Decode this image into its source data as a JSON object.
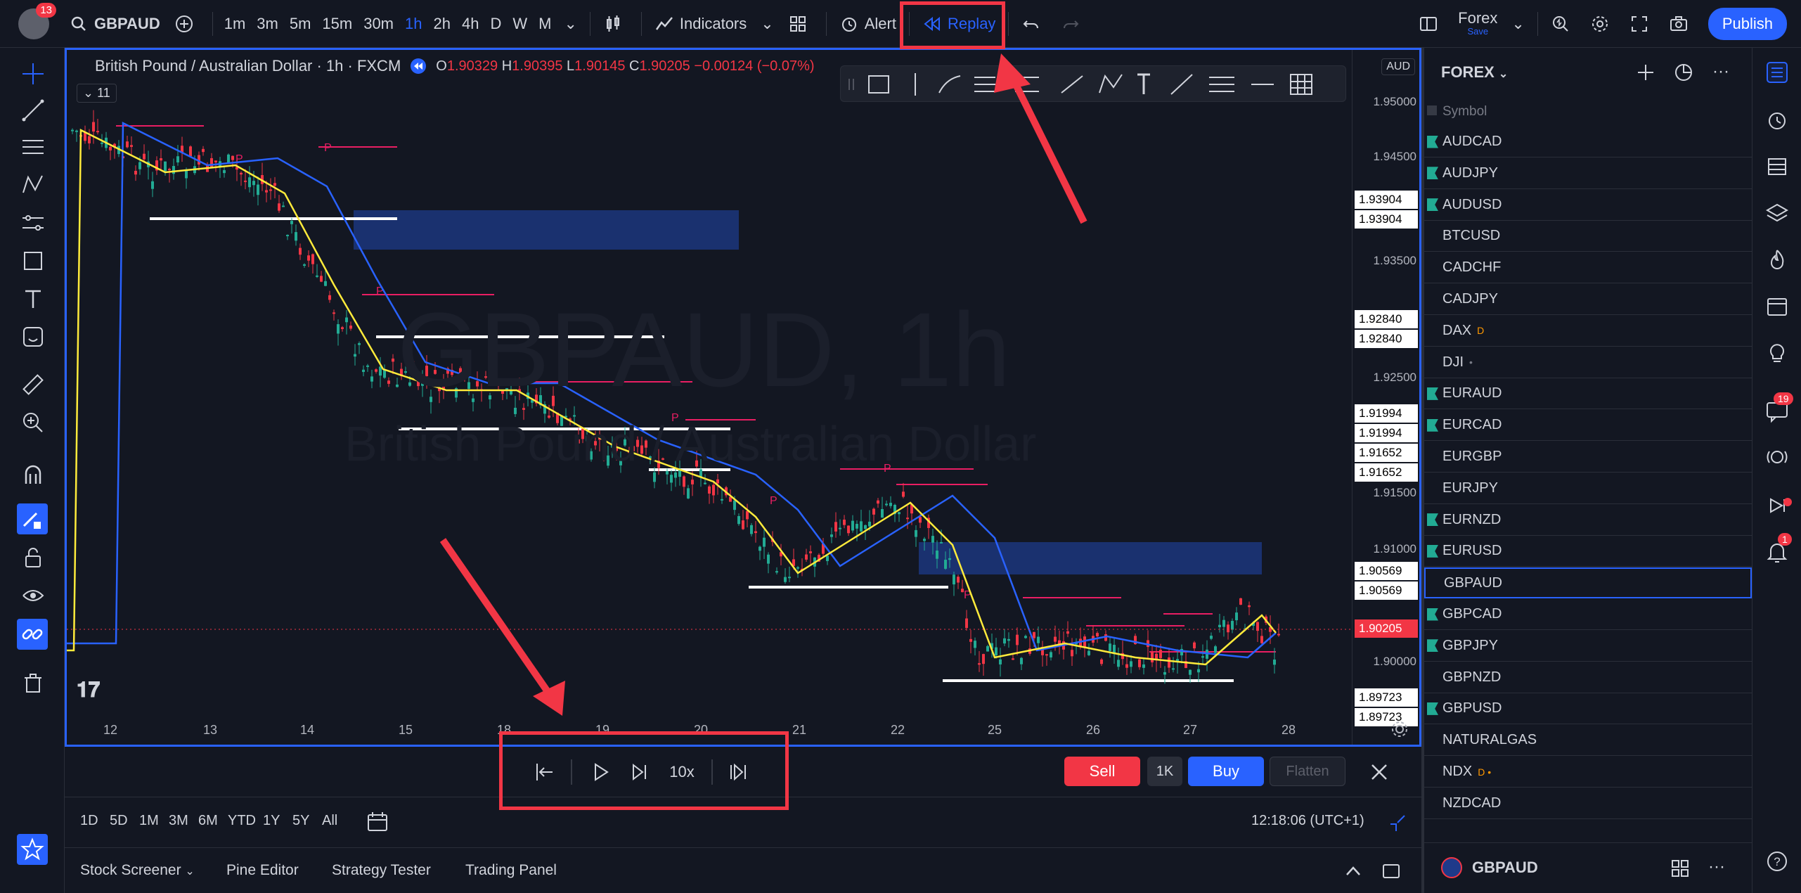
{
  "topbar": {
    "avatar_badge": "13",
    "symbol": "GBPAUD",
    "intervals": [
      "1m",
      "3m",
      "5m",
      "15m",
      "30m",
      "1h",
      "2h",
      "4h",
      "D",
      "W",
      "M"
    ],
    "active_interval": "1h",
    "indicators_label": "Indicators",
    "alert_label": "Alert",
    "replay_label": "Replay",
    "layout_name": "Forex",
    "layout_sub": "Save",
    "publish_label": "Publish"
  },
  "chart": {
    "title": "British Pound / Australian Dollar · 1h · FXCM",
    "ohlc": {
      "o": "1.90329",
      "h": "1.90395",
      "l": "1.90145",
      "c": "1.90205",
      "chg": "−0.00124 (−0.07%)"
    },
    "study_count": "11",
    "watermark_symbol": "GBPAUD, 1h",
    "watermark_name": "British Pound / Australian Dollar",
    "currency": "AUD",
    "price_labels": [
      "1.95000",
      "1.94500",
      "1.93500",
      "1.92500",
      "1.91500",
      "1.91000",
      "1.90000"
    ],
    "price_boxes": [
      "1.93904",
      "1.93904",
      "1.92840",
      "1.92840",
      "1.91994",
      "1.91994",
      "1.91652",
      "1.91652",
      "1.90569",
      "1.90569",
      "1.89723",
      "1.89723"
    ],
    "current_price": "1.90205",
    "x_labels": [
      "12",
      "13",
      "14",
      "15",
      "18",
      "19",
      "20",
      "21",
      "22",
      "25",
      "26",
      "27",
      "28"
    ]
  },
  "replay": {
    "speed": "10x",
    "sell_label": "Sell",
    "qty_label": "1K",
    "buy_label": "Buy",
    "flatten_label": "Flatten"
  },
  "range": {
    "items": [
      "1D",
      "5D",
      "1M",
      "3M",
      "6M",
      "YTD",
      "1Y",
      "5Y",
      "All"
    ],
    "clock": "12:18:06 (UTC+1)"
  },
  "bottom_tabs": [
    "Stock Screener",
    "Pine Editor",
    "Strategy Tester",
    "Trading Panel"
  ],
  "watchlist": {
    "title": "FOREX",
    "column": "Symbol",
    "items": [
      {
        "sym": "AUDCAD",
        "flag": true
      },
      {
        "sym": "AUDJPY",
        "flag": true
      },
      {
        "sym": "AUDUSD",
        "flag": true
      },
      {
        "sym": "BTCUSD",
        "flag": false
      },
      {
        "sym": "CADCHF",
        "flag": false
      },
      {
        "sym": "CADJPY",
        "flag": false
      },
      {
        "sym": "DAX",
        "flag": false,
        "tag": "D"
      },
      {
        "sym": "DJI",
        "flag": false,
        "tag": "•"
      },
      {
        "sym": "EURAUD",
        "flag": true
      },
      {
        "sym": "EURCAD",
        "flag": true
      },
      {
        "sym": "EURGBP",
        "flag": false
      },
      {
        "sym": "EURJPY",
        "flag": false
      },
      {
        "sym": "EURNZD",
        "flag": true
      },
      {
        "sym": "EURUSD",
        "flag": true
      },
      {
        "sym": "GBPAUD",
        "flag": false,
        "selected": true
      },
      {
        "sym": "GBPCAD",
        "flag": true
      },
      {
        "sym": "GBPJPY",
        "flag": true
      },
      {
        "sym": "GBPNZD",
        "flag": false
      },
      {
        "sym": "GBPUSD",
        "flag": true
      },
      {
        "sym": "NATURALGAS",
        "flag": false
      },
      {
        "sym": "NDX",
        "flag": false,
        "tag": "D •"
      },
      {
        "sym": "NZDCAD",
        "flag": false
      }
    ],
    "footer_symbol": "GBPAUD"
  },
  "rightbar": {
    "chat_badge": "19",
    "alerts_badge": "1"
  }
}
